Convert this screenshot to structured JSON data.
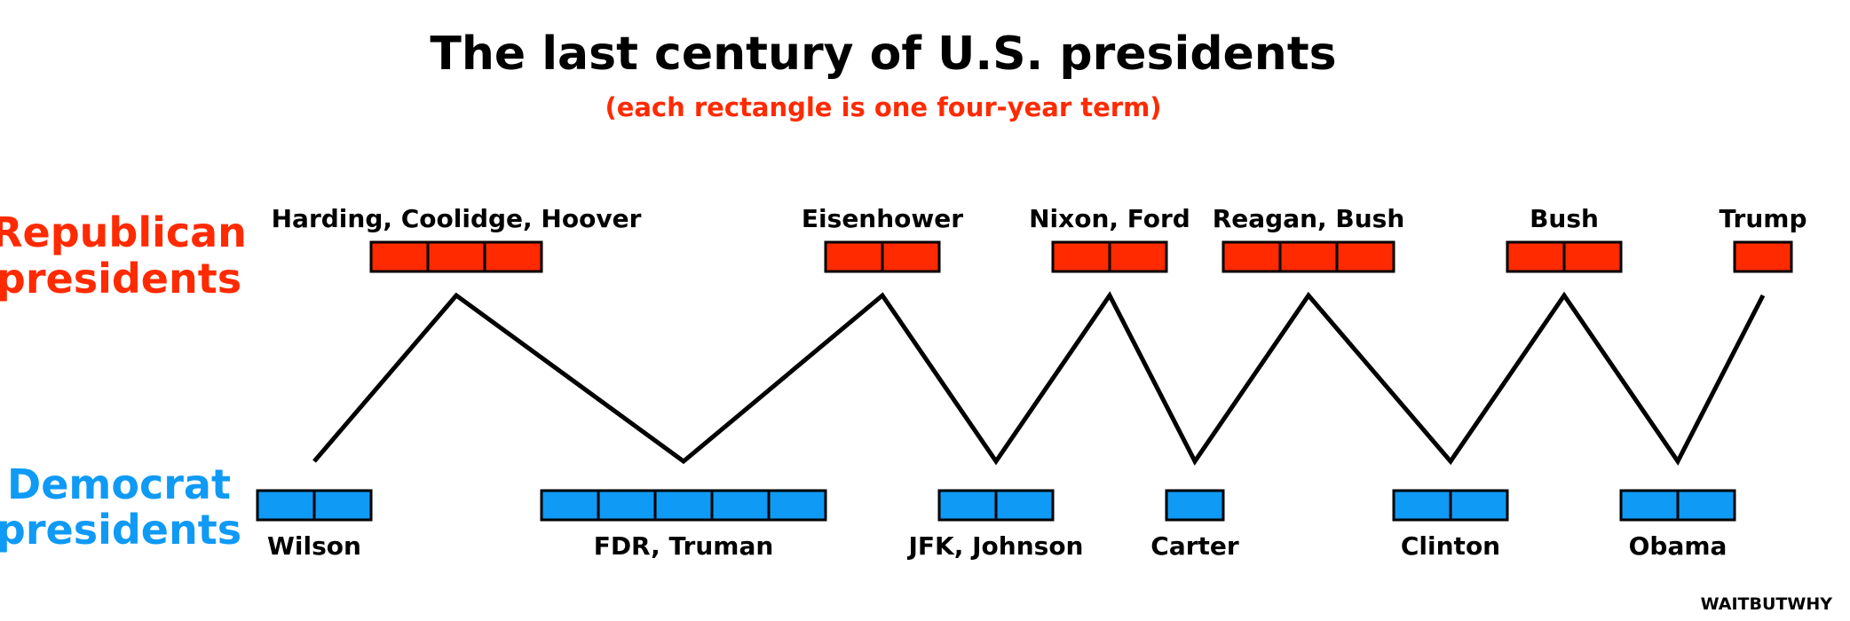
{
  "title": "The last century of U.S. presidents",
  "subtitle": "(each rectangle is one four-year term)",
  "party_labels": {
    "republican_line1": "Republican",
    "republican_line2": "presidents",
    "democrat_line1": "Democrat",
    "democrat_line2": "presidents"
  },
  "colors": {
    "republican": "#ff2a00",
    "democrat": "#0f9af5",
    "line": "#000000",
    "subtitle": "#ff2a00"
  },
  "groups": [
    {
      "party": "democrat",
      "label": "Wilson",
      "terms": 2
    },
    {
      "party": "republican",
      "label": "Harding, Coolidge, Hoover",
      "terms": 3
    },
    {
      "party": "democrat",
      "label": "FDR, Truman",
      "terms": 5
    },
    {
      "party": "republican",
      "label": "Eisenhower",
      "terms": 2
    },
    {
      "party": "democrat",
      "label": "JFK, Johnson",
      "terms": 2
    },
    {
      "party": "republican",
      "label": "Nixon, Ford",
      "terms": 2
    },
    {
      "party": "democrat",
      "label": "Carter",
      "terms": 1
    },
    {
      "party": "republican",
      "label": "Reagan, Bush",
      "terms": 3
    },
    {
      "party": "democrat",
      "label": "Clinton",
      "terms": 2
    },
    {
      "party": "republican",
      "label": "Bush",
      "terms": 2
    },
    {
      "party": "democrat",
      "label": "Obama",
      "terms": 2
    },
    {
      "party": "republican",
      "label": "Trump",
      "terms": 1
    }
  ],
  "watermark": "WAITBUTWHY"
}
